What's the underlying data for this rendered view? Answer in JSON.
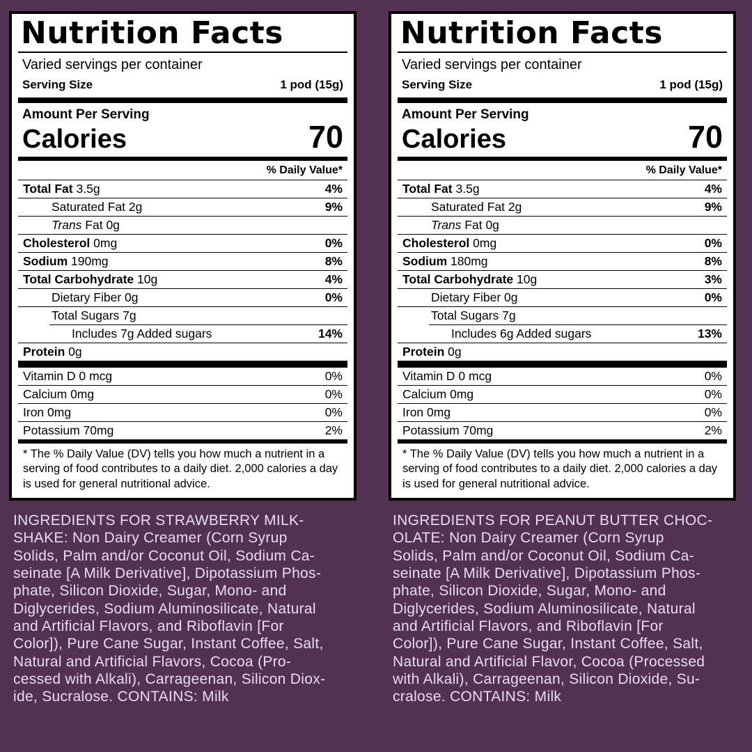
{
  "page": {
    "background_color": "#523152",
    "label_background": "#ffffff",
    "label_border_color": "#000000",
    "ingredients_text_color": "#e8ddee"
  },
  "labels": [
    {
      "title": "Nutrition Facts",
      "servings_per_container": "Varied servings per container",
      "serving_size_label": "Serving Size",
      "serving_size_value": "1 pod (15g)",
      "amount_per_serving": "Amount Per Serving",
      "calories_label": "Calories",
      "calories_value": "70",
      "daily_value_header": "% Daily Value*",
      "rows": [
        {
          "b": "Total Fat",
          "r": " 3.5g",
          "dv": "4%"
        },
        {
          "r": "Saturated Fat 2g",
          "dv": "9%"
        },
        {
          "i": "Trans",
          "r": " Fat 0g",
          "dv": ""
        },
        {
          "b": "Cholesterol",
          "r": " 0mg",
          "dv": "0%"
        },
        {
          "b": "Sodium",
          "r": " 190mg",
          "dv": "8%"
        },
        {
          "b": "Total Carbohydrate",
          "r": " 10g",
          "dv": "4%"
        },
        {
          "r": "Dietary Fiber 0g",
          "dv": "0%"
        },
        {
          "r": "Total Sugars 7g",
          "dv": ""
        },
        {
          "r": "Includes 7g Added sugars",
          "dv": "14%"
        },
        {
          "b": "Protein",
          "r": " 0g",
          "dv": ""
        }
      ],
      "micronutrients": [
        {
          "r": "Vitamin D 0 mcg",
          "dv": "0%"
        },
        {
          "r": "Calcium 0mg",
          "dv": "0%"
        },
        {
          "r": "Iron 0mg",
          "dv": "0%"
        },
        {
          "r": "Potassium 70mg",
          "dv": "2%"
        }
      ],
      "footnote": "* The % Daily Value (DV) tells you how much a nutrient in a serving of food contributes to a daily diet. 2,000 calories a day is used for general nutritional advice.",
      "ingredients": "INGREDIENTS FOR STRAWBERRY MILK-\nSHAKE: Non Dairy Creamer (Corn Syrup\nSolids, Palm and/or Coconut Oil, Sodium Ca-\nseinate [A Milk Derivative], Dipotassium Phos-\nphate, Silicon Dioxide, Sugar, Mono- and\nDiglycerides, Sodium Aluminosilicate, Natural\nand Artificial Flavors, and Riboflavin [For\nColor]), Pure Cane Sugar, Instant Coffee, Salt,\nNatural and Artificial Flavors, Cocoa (Pro-\ncessed with Alkali), Carrageenan, Silicon Diox-\nide, Sucralose. CONTAINS: Milk"
    },
    {
      "title": "Nutrition Facts",
      "servings_per_container": "Varied servings per container",
      "serving_size_label": "Serving Size",
      "serving_size_value": "1 pod (15g)",
      "amount_per_serving": "Amount Per Serving",
      "calories_label": "Calories",
      "calories_value": "70",
      "daily_value_header": "% Daily Value*",
      "rows": [
        {
          "b": "Total Fat",
          "r": " 3.5g",
          "dv": "4%"
        },
        {
          "r": "Saturated Fat 2g",
          "dv": "9%"
        },
        {
          "i": "Trans",
          "r": " Fat 0g",
          "dv": ""
        },
        {
          "b": "Cholesterol",
          "r": " 0mg",
          "dv": "0%"
        },
        {
          "b": "Sodium",
          "r": " 180mg",
          "dv": "8%"
        },
        {
          "b": "Total Carbohydrate",
          "r": " 10g",
          "dv": "3%"
        },
        {
          "r": "Dietary Fiber 0g",
          "dv": "0%"
        },
        {
          "r": "Total Sugars 7g",
          "dv": ""
        },
        {
          "r": "Includes 6g Added sugars",
          "dv": "13%"
        },
        {
          "b": "Protein",
          "r": " 0g",
          "dv": ""
        }
      ],
      "micronutrients": [
        {
          "r": "Vitamin D 0 mcg",
          "dv": "0%"
        },
        {
          "r": "Calcium 0mg",
          "dv": "0%"
        },
        {
          "r": "Iron 0mg",
          "dv": "0%"
        },
        {
          "r": "Potassium 70mg",
          "dv": "2%"
        }
      ],
      "footnote": "* The % Daily Value (DV) tells you how much a nutrient in a serving of food contributes to a daily diet. 2,000 calories a day is used for general nutritional advice.",
      "ingredients": "INGREDIENTS FOR PEANUT BUTTER CHOC-\nOLATE: Non Dairy Creamer (Corn Syrup\nSolids, Palm and/or Coconut Oil, Sodium Ca-\nseinate [A Milk Derivative], Dipotassium Phos-\nphate, Silicon Dioxide, Sugar, Mono- and\nDiglycerides, Sodium Aluminosilicate, Natural\nand Artificial Flavors, and Riboflavin [For\nColor]), Pure Cane Sugar, Instant Coffee, Salt,\nNatural and Artificial Flavor, Cocoa (Processed\nwith Alkali), Carrageenan, Silicon Dioxide, Su-\ncralose. CONTAINS: Milk"
    }
  ]
}
